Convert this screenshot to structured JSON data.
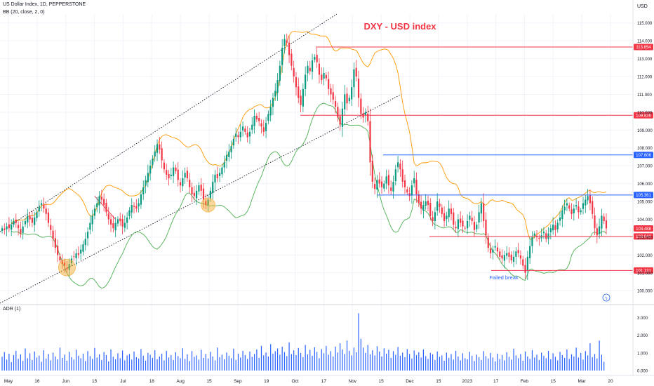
{
  "header": {
    "symbol_line": "US Dollar Index, 1D, PEPPERSTONE",
    "indicator_line": "BB (20, close, 2, 0)",
    "currency": "USD",
    "adr_label": "ADR (1)"
  },
  "colors": {
    "up": "#089981",
    "down": "#f23645",
    "bb_upper": "#ff9800",
    "bb_lower": "#4caf50",
    "level_red": "#f23645",
    "level_blue": "#2962ff",
    "adr_bar": "#2962ff",
    "title": "#f23645"
  },
  "chart_data": [
    {
      "type": "candlestick",
      "title": "DXY - USD index",
      "annotation": "Failed break",
      "ylim": [
        99.3,
        115.5
      ],
      "y_ticks": [
        "100.000",
        "101.000",
        "102.000",
        "103.000",
        "104.000",
        "105.000",
        "106.000",
        "107.000",
        "108.000",
        "109.000",
        "110.000",
        "111.000",
        "112.000",
        "113.000",
        "114.000",
        "115.000"
      ],
      "x_ticks": [
        "May",
        "16",
        "Jun",
        "15",
        "Jul",
        "18",
        "Aug",
        "15",
        "Sep",
        "19",
        "Oct",
        "17",
        "Nov",
        "15",
        "Dec",
        "15",
        "2023",
        "17",
        "Feb",
        "15",
        "Mar",
        "20"
      ],
      "price_levels": [
        {
          "label": "113.654",
          "value": 113.654,
          "color": "red"
        },
        {
          "label": "109.826",
          "value": 109.826,
          "color": "red"
        },
        {
          "label": "107.606",
          "value": 107.606,
          "color": "blue"
        },
        {
          "label": "105.361",
          "value": 105.361,
          "color": "blue"
        },
        {
          "label": "103.488",
          "value": 103.488,
          "color": "red-filled"
        },
        {
          "label": "103.042",
          "value": 103.042,
          "color": "red"
        },
        {
          "label": "101.131",
          "value": 101.131,
          "color": "red"
        }
      ],
      "closes": [
        103.5,
        103.4,
        103.6,
        103.5,
        103.7,
        103.9,
        103.8,
        103.5,
        103.2,
        103.6,
        103.9,
        104.2,
        104.0,
        103.8,
        104.1,
        104.4,
        104.7,
        104.9,
        104.6,
        104.3,
        103.8,
        103.4,
        102.9,
        102.4,
        102.0,
        101.7,
        101.5,
        101.4,
        101.2,
        101.5,
        101.8,
        101.9,
        102.1,
        102.0,
        102.3,
        102.6,
        102.9,
        103.3,
        103.8,
        104.2,
        104.6,
        104.9,
        105.3,
        105.1,
        104.8,
        104.4,
        104.0,
        103.7,
        103.5,
        103.8,
        104.0,
        103.9,
        103.6,
        103.8,
        104.1,
        104.5,
        104.8,
        104.7,
        104.6,
        104.9,
        105.4,
        105.8,
        106.2,
        106.6,
        107.0,
        107.4,
        107.8,
        108.2,
        107.9,
        107.3,
        106.8,
        106.5,
        106.3,
        106.5,
        106.9,
        106.7,
        106.2,
        105.9,
        106.3,
        106.6,
        106.3,
        105.8,
        105.4,
        105.3,
        105.6,
        105.9,
        105.6,
        105.1,
        104.8,
        105.1,
        105.6,
        106.1,
        106.5,
        106.3,
        106.6,
        106.9,
        107.2,
        107.6,
        107.8,
        108.1,
        108.5,
        108.8,
        108.6,
        108.9,
        109.2,
        108.9,
        108.6,
        108.9,
        109.3,
        109.8,
        109.6,
        109.5,
        109.2,
        108.9,
        109.4,
        109.9,
        110.3,
        110.8,
        111.2,
        111.8,
        112.6,
        113.6,
        114.1,
        113.9,
        113.2,
        112.6,
        112.0,
        111.4,
        110.8,
        110.4,
        111.3,
        112.1,
        112.6,
        112.3,
        112.9,
        113.1,
        112.8,
        112.1,
        111.8,
        112.2,
        111.9,
        111.3,
        111.0,
        110.7,
        110.3,
        109.7,
        109.3,
        110.2,
        111.0,
        110.5,
        110.8,
        111.4,
        112.4,
        112.0,
        110.8,
        109.9,
        109.7,
        110.0,
        109.5,
        107.2,
        106.1,
        105.7,
        106.2,
        106.0,
        105.8,
        106.0,
        106.4,
        105.9,
        105.6,
        106.1,
        106.8,
        107.2,
        106.8,
        106.1,
        105.8,
        105.5,
        105.3,
        105.9,
        106.3,
        105.4,
        104.9,
        104.6,
        104.8,
        105.0,
        104.8,
        104.2,
        103.9,
        104.4,
        105.0,
        104.7,
        104.3,
        103.9,
        104.2,
        104.6,
        104.3,
        103.7,
        103.5,
        104.0,
        103.8,
        103.6,
        103.5,
        103.9,
        104.2,
        103.9,
        103.4,
        103.7,
        104.4,
        104.9,
        103.9,
        103.1,
        102.4,
        102.1,
        102.3,
        102.5,
        102.2,
        101.9,
        101.8,
        102.0,
        102.1,
        101.9,
        101.7,
        101.9,
        102.2,
        102.1,
        101.8,
        101.4,
        101.0,
        101.9,
        102.5,
        103.0,
        103.2,
        103.0,
        102.9,
        103.1,
        103.3,
        102.9,
        103.2,
        103.5,
        103.7,
        103.4,
        103.8,
        104.1,
        104.5,
        104.7,
        104.9,
        104.6,
        104.3,
        104.6,
        104.8,
        104.4,
        104.5,
        104.9,
        105.1,
        105.3,
        104.9,
        104.3,
        103.5,
        103.1,
        103.6,
        104.2,
        103.9,
        103.488
      ],
      "adr": [
        0.78,
        1.05,
        0.62,
        0.95,
        0.48,
        0.88,
        1.12,
        0.66,
        0.92,
        0.55,
        1.25,
        0.7,
        0.98,
        0.6,
        1.08,
        0.74,
        0.85,
        0.5,
        1.15,
        0.68,
        0.94,
        0.58,
        1.02,
        0.8,
        0.64,
        1.3,
        0.72,
        0.9,
        0.56,
        1.06,
        0.76,
        0.62,
        1.18,
        0.84,
        0.7,
        0.96,
        0.54,
        1.1,
        0.82,
        0.66,
        1.28,
        0.74,
        0.92,
        0.6,
        1.05,
        0.88,
        0.52,
        1.2,
        0.78,
        0.64,
        0.98,
        0.7,
        1.14,
        0.58,
        0.86,
        0.94,
        0.62,
        1.08,
        0.76,
        0.68,
        1.22,
        0.84,
        0.56,
        1.0,
        0.9,
        0.72,
        1.16,
        0.64,
        0.8,
        0.96,
        0.58,
        1.12,
        0.74,
        0.88,
        0.6,
        1.04,
        0.82,
        0.7,
        1.26,
        0.66,
        0.92,
        0.54,
        1.1,
        0.78,
        0.86,
        0.62,
        1.18,
        0.72,
        0.94,
        0.68,
        1.06,
        0.8,
        0.58,
        1.3,
        0.76,
        0.9,
        0.64,
        1.02,
        0.84,
        0.7,
        1.24,
        0.6,
        0.96,
        0.74,
        1.12,
        0.88,
        0.66,
        1.08,
        0.78,
        0.94,
        1.2,
        0.72,
        1.4,
        0.86,
        1.02,
        0.8,
        1.5,
        0.96,
        1.1,
        1.25,
        0.9,
        1.35,
        1.05,
        0.82,
        1.6,
        0.94,
        1.15,
        0.88,
        1.28,
        1.0,
        0.76,
        1.45,
        0.92,
        1.18,
        0.84,
        1.32,
        1.06,
        0.7,
        1.22,
        0.98,
        1.4,
        0.9,
        1.1,
        0.8,
        1.36,
        1.02,
        1.55,
        1.2,
        0.94,
        1.7,
        1.12,
        0.86,
        1.3,
        1.04,
        3.25,
        1.8,
        1.3,
        1.0,
        1.45,
        0.92,
        1.15,
        0.86,
        1.38,
        1.08,
        0.8,
        1.26,
        0.96,
        1.18,
        0.72,
        1.1,
        0.9,
        1.34,
        0.84,
        1.02,
        0.76,
        1.22,
        0.94,
        0.68,
        1.14,
        0.88,
        1.04,
        0.74,
        1.2,
        0.82,
        0.66,
        1.0,
        0.92,
        0.6,
        1.08,
        0.78,
        0.86,
        0.56,
        1.02,
        0.72,
        0.94,
        0.62,
        1.12,
        0.8,
        0.58,
        0.98,
        0.7,
        0.64,
        1.06,
        0.84,
        0.54,
        0.9,
        0.76,
        0.6,
        1.1,
        0.82,
        0.68,
        1.0,
        0.74,
        0.52,
        0.96,
        0.66,
        0.88,
        0.58,
        1.04,
        0.78,
        0.62,
        1.24,
        0.86,
        0.7,
        0.94,
        0.56,
        1.08,
        0.8,
        0.66,
        1.16,
        0.74,
        0.9,
        0.6,
        1.02,
        0.84,
        0.7,
        1.12,
        0.64,
        0.98,
        0.78,
        0.58,
        1.06,
        0.88,
        0.72,
        1.2,
        0.66,
        0.92,
        0.8,
        1.3,
        0.74,
        1.0,
        0.62,
        1.1,
        0.86,
        1.55,
        0.76,
        0.94,
        0.68,
        1.7,
        0.9,
        0.5
      ],
      "adr_ticks": [
        "0.000",
        "1.000",
        "2.000",
        "3.000"
      ]
    }
  ]
}
